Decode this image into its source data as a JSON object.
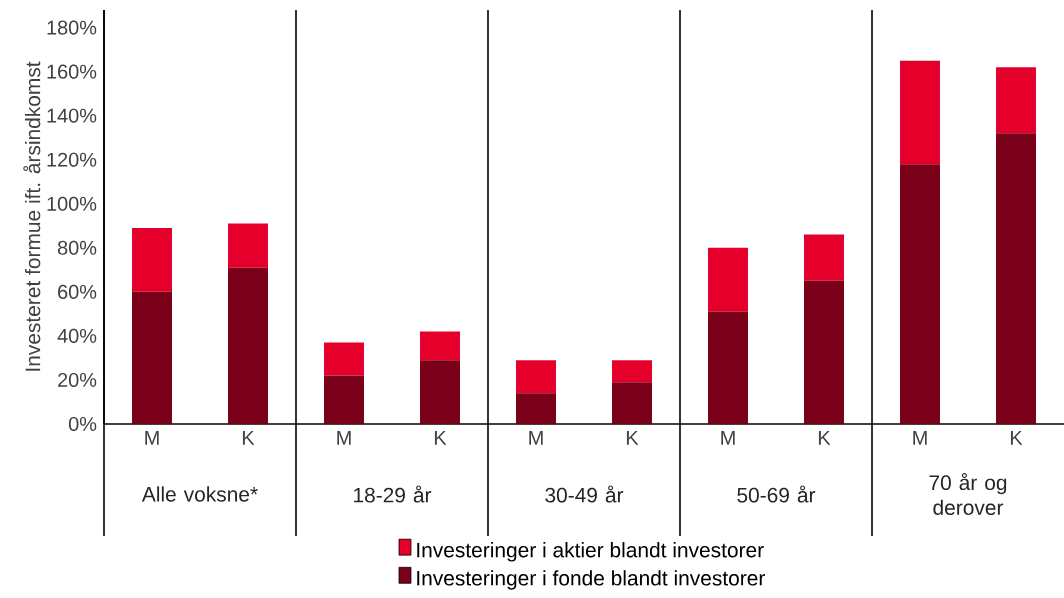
{
  "chart_data": {
    "type": "bar",
    "stacked": true,
    "categories": [
      "M",
      "K",
      "M",
      "K",
      "M",
      "K",
      "M",
      "K",
      "M",
      "K"
    ],
    "series": [
      {
        "name": "Investeringer i fonde blandt investorer",
        "color": "#7a0019",
        "values": [
          60,
          71,
          22,
          29,
          14,
          19,
          51,
          65,
          118,
          132
        ]
      },
      {
        "name": "Investeringer i aktier blandt investorer",
        "color": "#e4002b",
        "values": [
          29,
          20,
          15,
          13,
          15,
          10,
          29,
          21,
          47,
          30
        ]
      }
    ],
    "ylabel": "Investeret formue ift. årsindkomst",
    "ylim": [
      0,
      188
    ],
    "yticks": [
      {
        "value": 0,
        "label": "0%"
      },
      {
        "value": 20,
        "label": "20%"
      },
      {
        "value": 40,
        "label": "40%"
      },
      {
        "value": 60,
        "label": "60%"
      },
      {
        "value": 80,
        "label": "80%"
      },
      {
        "value": 100,
        "label": "100%"
      },
      {
        "value": 120,
        "label": "120%"
      },
      {
        "value": 140,
        "label": "140%"
      },
      {
        "value": 160,
        "label": "160%"
      },
      {
        "value": 180,
        "label": "180%"
      }
    ],
    "annotations": [
      "Alle voksne*",
      "18-29 år",
      "30-49 år",
      "50-69 år",
      "70 år og derover"
    ],
    "legend": "bottom"
  }
}
